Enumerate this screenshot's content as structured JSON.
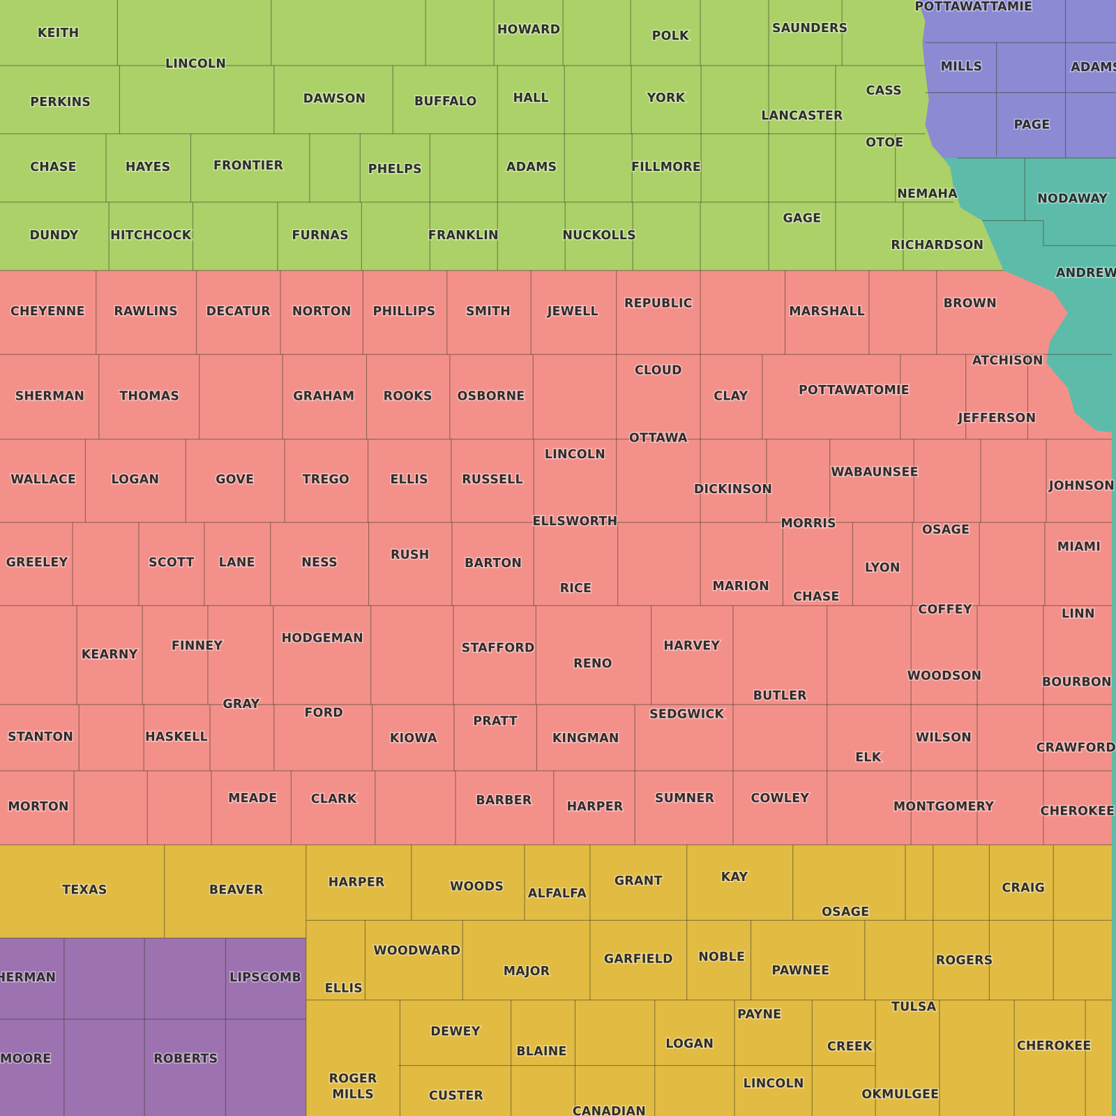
{
  "map": {
    "region_colors": {
      "nebraska": "#abd168",
      "iowa": "#8b8ad3",
      "missouri": "#5dbca9",
      "kansas": "#f4908a",
      "oklahoma": "#e2bb42",
      "texas": "#9c72b0"
    },
    "labels": {
      "nebraska": [
        "KEITH",
        "LINCOLN",
        "HOWARD",
        "POLK",
        "SAUNDERS",
        "PERKINS",
        "DAWSON",
        "BUFFALO",
        "HALL",
        "YORK",
        "CASS",
        "LANCASTER",
        "CHASE",
        "HAYES",
        "FRONTIER",
        "PHELPS",
        "ADAMS",
        "FILLMORE",
        "OTOE",
        "NEMAHA",
        "GAGE",
        "DUNDY",
        "HITCHCOCK",
        "FURNAS",
        "FRANKLIN",
        "NUCKOLLS",
        "RICHARDSON"
      ],
      "iowa": [
        "POTTAWATTAMIE",
        "MILLS",
        "ADAMS",
        "PAGE"
      ],
      "missouri": [
        "NODAWAY",
        "ANDREW"
      ],
      "kansas": [
        "CHEYENNE",
        "RAWLINS",
        "DECATUR",
        "NORTON",
        "PHILLIPS",
        "SMITH",
        "JEWELL",
        "REPUBLIC",
        "MARSHALL",
        "BROWN",
        "CLOUD",
        "ATCHISON",
        "SHERMAN",
        "THOMAS",
        "GRAHAM",
        "ROOKS",
        "OSBORNE",
        "CLAY",
        "POTTAWATOMIE",
        "JEFFERSON",
        "OTTAWA",
        "LINCOLN",
        "WABAUNSEE",
        "WALLACE",
        "LOGAN",
        "GOVE",
        "TREGO",
        "ELLIS",
        "RUSSELL",
        "DICKINSON",
        "JOHNSON",
        "ELLSWORTH",
        "MORRIS",
        "OSAGE",
        "MIAMI",
        "GREELEY",
        "SCOTT",
        "LANE",
        "NESS",
        "RUSH",
        "BARTON",
        "LYON",
        "RICE",
        "MARION",
        "CHASE",
        "COFFEY",
        "LINN",
        "KEARNY",
        "FINNEY",
        "HODGEMAN",
        "STAFFORD",
        "HARVEY",
        "RENO",
        "WOODSON",
        "BOURBON",
        "GRAY",
        "FORD",
        "BUTLER",
        "SEDGWICK",
        "PRATT",
        "STANTON",
        "HASKELL",
        "KIOWA",
        "KINGMAN",
        "WILSON",
        "CRAWFORD",
        "ELK",
        "MORTON",
        "MEADE",
        "CLARK",
        "BARBER",
        "HARPER",
        "SUMNER",
        "COWLEY",
        "MONTGOMERY",
        "CHEROKEE"
      ],
      "oklahoma": [
        "TEXAS",
        "BEAVER",
        "HARPER",
        "WOODS",
        "ALFALFA",
        "GRANT",
        "KAY",
        "OSAGE",
        "CRAIG",
        "WOODWARD",
        "MAJOR",
        "GARFIELD",
        "NOBLE",
        "PAWNEE",
        "ROGERS",
        "ELLIS",
        "TULSA",
        "DEWEY",
        "PAYNE",
        "BLAINE",
        "LOGAN",
        "CREEK",
        "CHEROKEE",
        "ROGER MILLS",
        "CUSTER",
        "LINCOLN",
        "OKMULGEE",
        "CANADIAN"
      ],
      "texas": [
        "SHERMAN",
        "LIPSCOMB",
        "MOORE",
        "ROBERTS"
      ]
    }
  }
}
